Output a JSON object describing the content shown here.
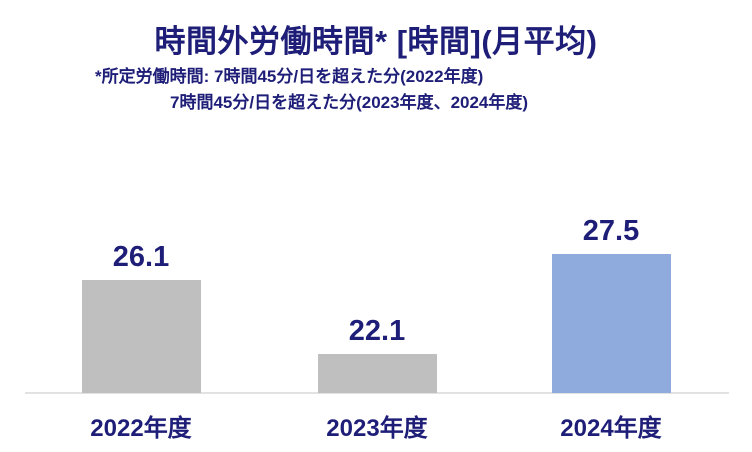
{
  "chart_data": {
    "type": "bar",
    "title": "時間外労働時間* [時間](月平均)",
    "subtitle_line1": "*所定労働時間: 7時間45分/日を超えた分(2022年度)",
    "subtitle_line2": "7時間45分/日を超えた分(2023年度、2024年度)",
    "categories": [
      "2022年度",
      "2023年度",
      "2024年度"
    ],
    "values": [
      26.1,
      22.1,
      27.5
    ],
    "value_labels": [
      "26.1",
      "22.1",
      "27.5"
    ],
    "xlabel": "",
    "ylabel": "",
    "ylim": [
      20,
      28
    ],
    "grid": false,
    "legend": false,
    "y_axis_visible": false,
    "colors": {
      "bar_colors": [
        "#BFBFBF",
        "#BFBFBF",
        "#8FAADC"
      ],
      "text_navy": "#1E1E78",
      "axis_line": "#E2E2E2",
      "background": "#FFFFFF"
    }
  }
}
